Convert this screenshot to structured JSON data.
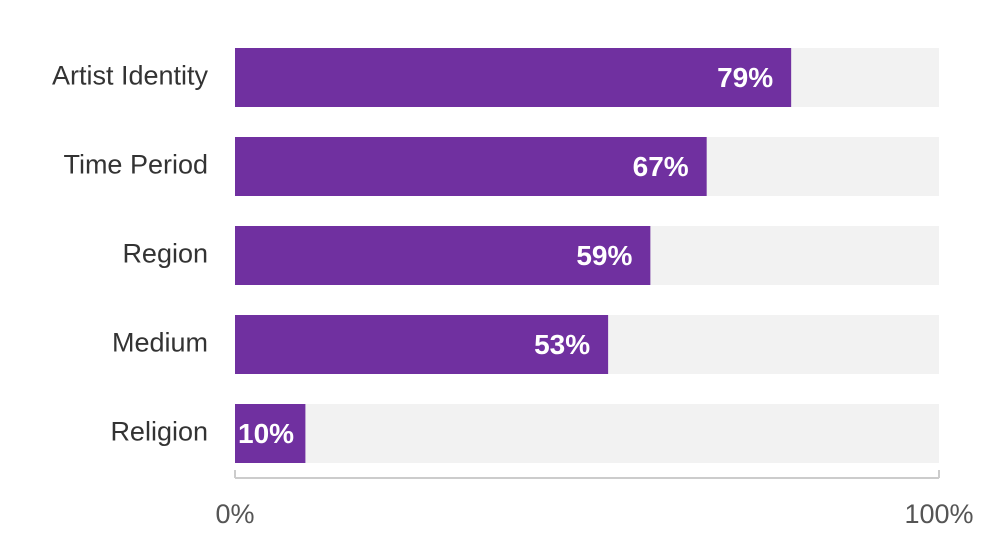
{
  "chart_data": {
    "type": "bar",
    "categories": [
      "Artist Identity",
      "Time Period",
      "Region",
      "Medium",
      "Religion"
    ],
    "values": [
      79,
      67,
      59,
      53,
      10
    ],
    "value_labels": [
      "79%",
      "67%",
      "59%",
      "53%",
      "10%"
    ],
    "color": "#7030a0",
    "track_color": "#f2f2f2",
    "xlim": [
      0,
      100
    ],
    "xticks": [
      {
        "value": 0,
        "label": "0%"
      },
      {
        "value": 100,
        "label": "100%"
      }
    ]
  }
}
